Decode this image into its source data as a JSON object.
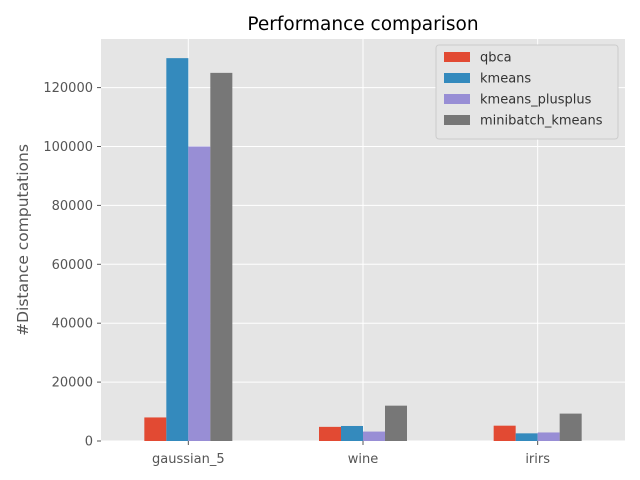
{
  "chart_data": {
    "type": "bar",
    "title": "Performance comparison",
    "xlabel": "",
    "ylabel": "#Distance computations",
    "categories": [
      "gaussian_5",
      "wine",
      "irirs"
    ],
    "series": [
      {
        "name": "qbca",
        "color": "#E24A33",
        "values": [
          8000,
          4800,
          5200
        ]
      },
      {
        "name": "kmeans",
        "color": "#348ABD",
        "values": [
          130000,
          5100,
          2600
        ]
      },
      {
        "name": "kmeans_plusplus",
        "color": "#988ED5",
        "values": [
          100000,
          3200,
          2900
        ]
      },
      {
        "name": "minibatch_kmeans",
        "color": "#777777",
        "values": [
          125000,
          12000,
          9300
        ]
      }
    ],
    "ylim": [
      0,
      136500
    ],
    "yticks": [
      0,
      20000,
      40000,
      60000,
      80000,
      100000,
      120000
    ],
    "grid": true,
    "legend_position": "top-right",
    "style": {
      "background": "#E5E5E5",
      "grid_color": "#FFFFFF"
    }
  }
}
